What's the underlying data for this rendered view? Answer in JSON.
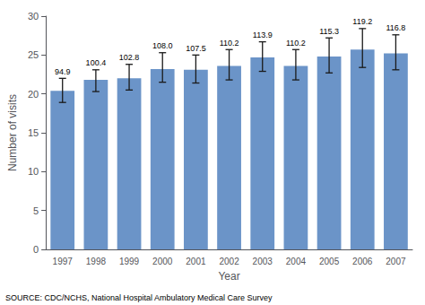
{
  "chart_data": {
    "type": "bar",
    "categories": [
      "1997",
      "1998",
      "1999",
      "2000",
      "2001",
      "2002",
      "2003",
      "2004",
      "2005",
      "2006",
      "2007"
    ],
    "values": [
      20.4,
      21.8,
      22.0,
      23.2,
      23.1,
      23.6,
      24.7,
      23.6,
      24.8,
      25.7,
      25.2
    ],
    "error_upper": [
      1.6,
      1.3,
      1.8,
      2.1,
      1.9,
      2.1,
      2.0,
      2.1,
      2.4,
      2.7,
      2.4
    ],
    "error_lower": [
      1.5,
      1.5,
      1.5,
      1.7,
      1.7,
      1.8,
      1.8,
      1.8,
      2.1,
      2.3,
      2.1
    ],
    "upper_labels": [
      "94.9",
      "100.4",
      "102.8",
      "108.0",
      "107.5",
      "110.2",
      "113.9",
      "110.2",
      "115.3",
      "119.2",
      "116.8"
    ],
    "color": "#6b94c8",
    "xlabel": "Year",
    "ylabel": "Number of visits",
    "ylim": [
      0,
      30
    ],
    "yticks": [
      0,
      5,
      10,
      15,
      20,
      25,
      30
    ],
    "grid": false,
    "annotations": [
      "SOURCE: CDC/NCHS, National Hospital Ambulatory Medical Care Survey"
    ]
  }
}
